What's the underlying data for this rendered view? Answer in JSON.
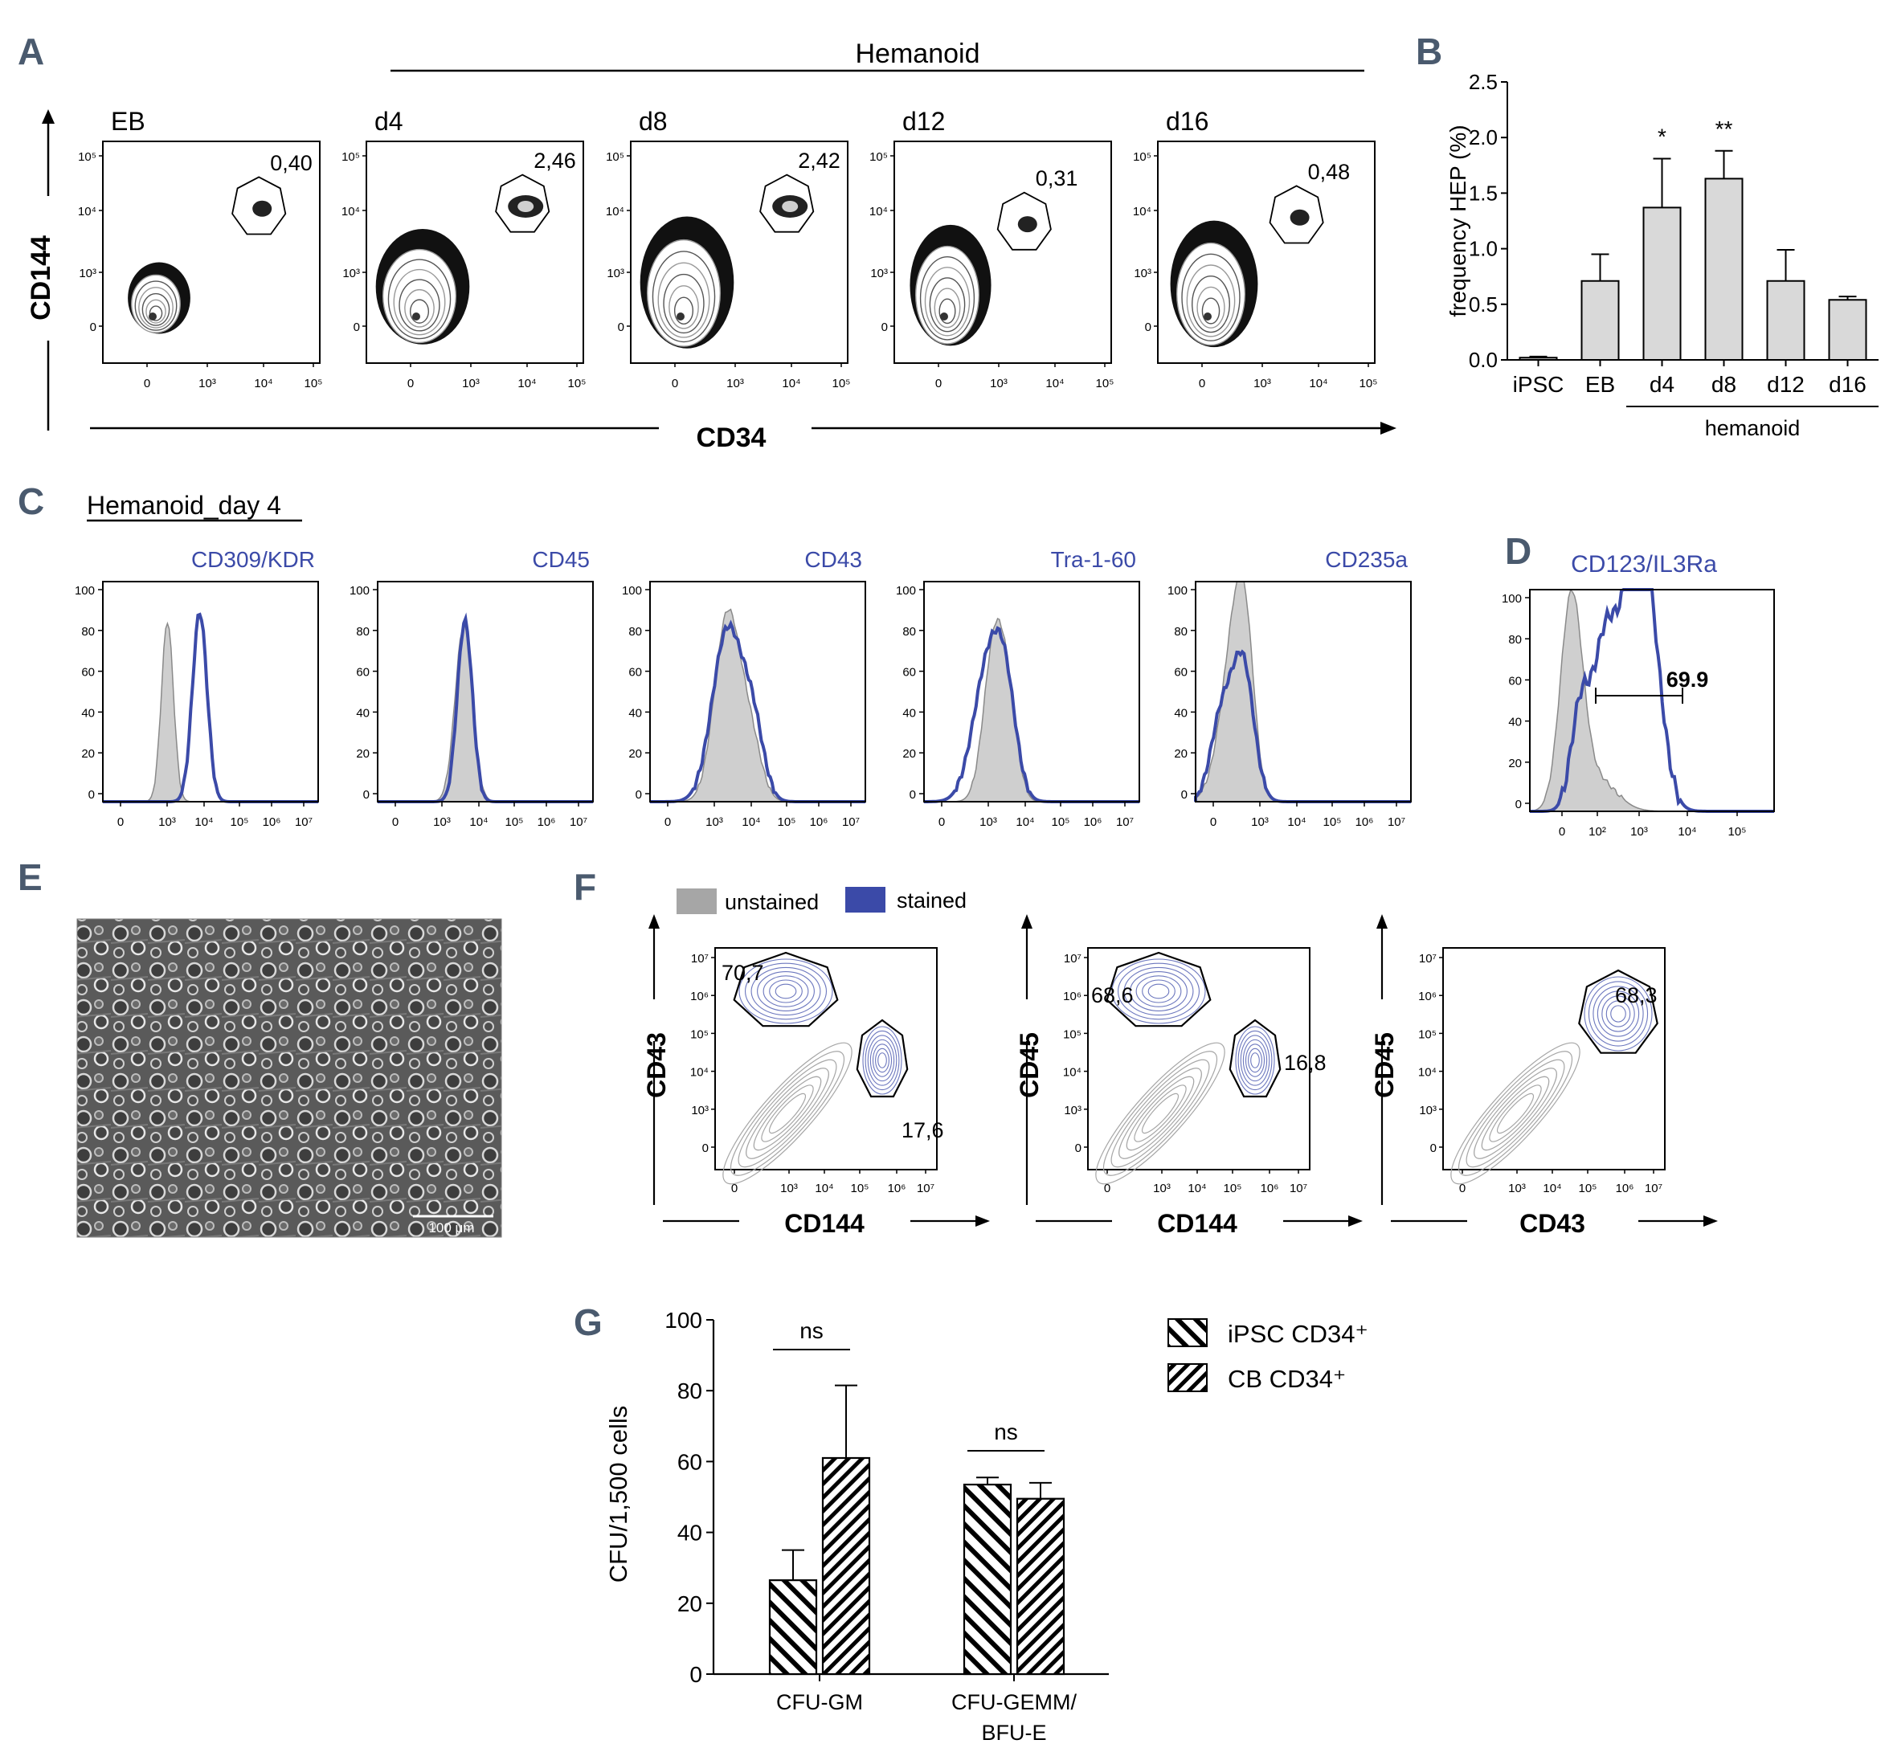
{
  "panel_labels": {
    "A": "A",
    "B": "B",
    "C": "C",
    "D": "D",
    "E": "E",
    "F": "F",
    "G": "G"
  },
  "colors": {
    "stained": "#3b4aa8",
    "unstained": "#a6a6a6",
    "bar": "#d9d9d9",
    "panel_label": "#4a5a6e",
    "text": "#000000"
  },
  "panelA": {
    "group_label": "Hemanoid",
    "y_label": "CD144",
    "x_label": "CD34",
    "y_ticks": [
      "10⁵",
      "10⁴",
      "10³",
      "0"
    ],
    "x_ticks": [
      "0",
      "10³",
      "10⁴",
      "10⁵"
    ],
    "plots": [
      {
        "title": "EB",
        "gate_value": "0,40"
      },
      {
        "title": "d4",
        "gate_value": "2,46"
      },
      {
        "title": "d8",
        "gate_value": "2,42"
      },
      {
        "title": "d12",
        "gate_value": "0,31"
      },
      {
        "title": "d16",
        "gate_value": "0,48"
      }
    ]
  },
  "panelC": {
    "title": "Hemanoid_day 4",
    "y_ticks": [
      "100",
      "80",
      "60",
      "40",
      "20",
      "0"
    ],
    "x_ticks_a": [
      "0",
      "10³",
      "10⁴",
      "10⁵",
      "10⁶",
      "10⁷"
    ],
    "x_ticks_b": [
      "0",
      "10³",
      "10⁴",
      "10⁵",
      "10⁶",
      "10⁷"
    ],
    "histograms": [
      {
        "marker": "CD309/KDR"
      },
      {
        "marker": "CD45"
      },
      {
        "marker": "CD43"
      },
      {
        "marker": "Tra-1-60"
      },
      {
        "marker": "CD235a"
      }
    ]
  },
  "panelD": {
    "marker": "CD123/IL3Ra",
    "gate_value": "69.9",
    "y_ticks": [
      "100",
      "80",
      "60",
      "40",
      "20",
      "0"
    ],
    "x_ticks": [
      "0",
      "10²",
      "10³",
      "10⁴",
      "10⁵"
    ]
  },
  "panelE": {
    "scale_bar": "100 μm"
  },
  "panelF": {
    "legend": {
      "unstained": "unstained",
      "stained": "stained"
    },
    "y_ticks": [
      "10⁷",
      "10⁶",
      "10⁵",
      "10⁴",
      "10³",
      "0"
    ],
    "x_ticks": [
      "0",
      "10³",
      "10⁴",
      "10⁵",
      "10⁶",
      "10⁷"
    ],
    "plots": [
      {
        "y_label": "CD43",
        "x_label": "CD144",
        "gate1": "70,7",
        "gate2": "17,6"
      },
      {
        "y_label": "CD45",
        "x_label": "CD144",
        "gate1": "68,6",
        "gate2": "16,8"
      },
      {
        "y_label": "CD45",
        "x_label": "CD43",
        "gate1": "68,3",
        "gate2": ""
      }
    ]
  },
  "chart_data": [
    {
      "panel": "B",
      "type": "bar",
      "title": "",
      "ylabel": "frequency HEP (%)",
      "xlabel": "",
      "group_label": "hemanoid",
      "categories": [
        "iPSC",
        "EB",
        "d4",
        "d8",
        "d12",
        "d16"
      ],
      "values": [
        0.02,
        0.71,
        1.37,
        1.63,
        0.71,
        0.54
      ],
      "errors": [
        0.01,
        0.24,
        0.44,
        0.25,
        0.28,
        0.03
      ],
      "significance": [
        "",
        "",
        "*",
        "**",
        "",
        ""
      ],
      "ylim": [
        0,
        2.5
      ],
      "yticks": [
        "0.0",
        "0.5",
        "1.0",
        "1.5",
        "2.0",
        "2.5"
      ]
    },
    {
      "panel": "G",
      "type": "bar",
      "title": "",
      "ylabel": "CFU/1,500 cells",
      "xlabel": "",
      "categories": [
        "CFU-GM",
        "CFU-GEMM/ BFU-E"
      ],
      "category_lines": [
        [
          "CFU-GM"
        ],
        [
          "CFU-GEMM/",
          "BFU-E"
        ]
      ],
      "series": [
        {
          "name": "iPSC CD34⁺",
          "values": [
            26.5,
            53.5
          ],
          "errors": [
            8.5,
            2.0
          ]
        },
        {
          "name": "CB CD34⁺",
          "values": [
            61.0,
            49.5
          ],
          "errors": [
            20.5,
            4.5
          ]
        }
      ],
      "significance": [
        "ns",
        "ns"
      ],
      "ylim": [
        0,
        100
      ],
      "yticks": [
        "0",
        "20",
        "40",
        "60",
        "80",
        "100"
      ]
    }
  ]
}
